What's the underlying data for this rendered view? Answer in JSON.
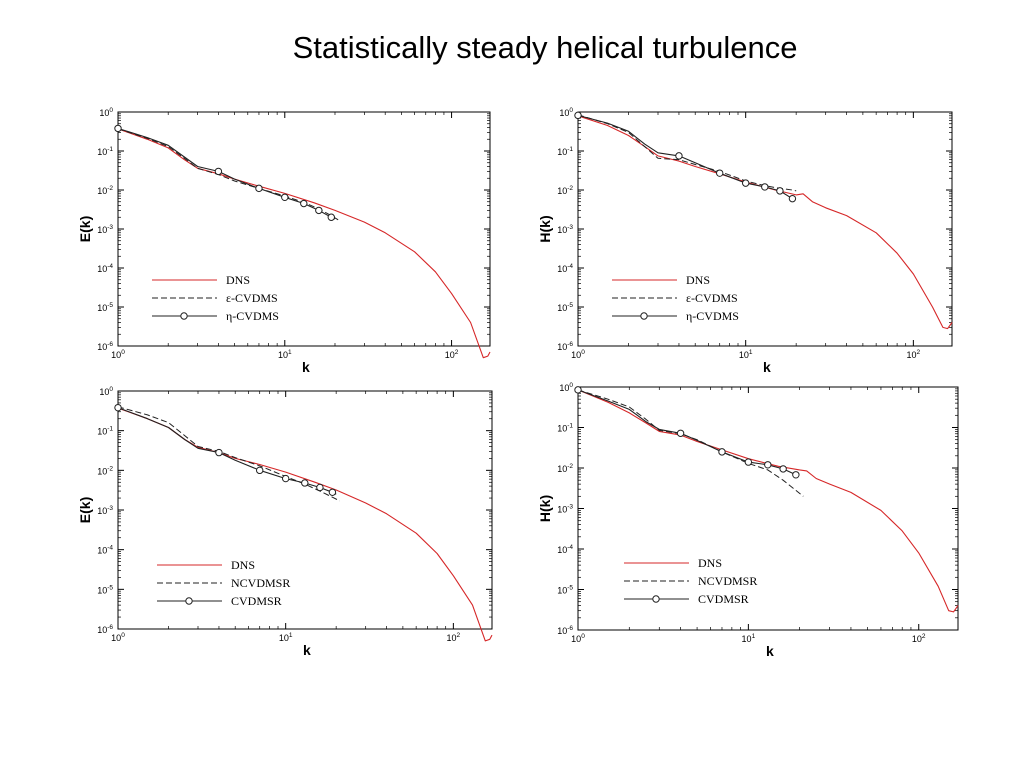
{
  "title": "Statistically steady helical turbulence",
  "colors": {
    "dns": "#d62728",
    "model": "#222222"
  },
  "chart_data": [
    {
      "type": "line",
      "xlabel": "k",
      "ylabel": "E(k)",
      "xscale": "log",
      "yscale": "log",
      "xlim": [
        1,
        170
      ],
      "ylim": [
        1e-06,
        1
      ],
      "xticks": [
        "10^0",
        "10^1",
        "10^2"
      ],
      "yticks": [
        "10^0",
        "10^-1",
        "10^-2",
        "10^-3",
        "10^-4",
        "10^-5",
        "10^-6"
      ],
      "legend_position": "bottom-left",
      "series": [
        {
          "name": "DNS",
          "color": "#d62728",
          "style": "solid",
          "marker": "none",
          "x": [
            1,
            1.5,
            2,
            2.5,
            3,
            4,
            5,
            7,
            10,
            15,
            20,
            30,
            40,
            60,
            80,
            100,
            130,
            155,
            165,
            170
          ],
          "y": [
            0.37,
            0.2,
            0.12,
            0.06,
            0.036,
            0.026,
            0.019,
            0.0125,
            0.0082,
            0.0047,
            0.003,
            0.0015,
            0.0008,
            0.00026,
            8e-05,
            2.2e-05,
            4e-06,
            5e-07,
            5.5e-07,
            7e-07
          ]
        },
        {
          "name": "ε-CVDMS",
          "color": "#222222",
          "style": "dashed",
          "marker": "none",
          "x": [
            1,
            1.5,
            2,
            2.5,
            3,
            4,
            5,
            7,
            10,
            13,
            16,
            19,
            21
          ],
          "y": [
            0.37,
            0.21,
            0.13,
            0.065,
            0.036,
            0.025,
            0.017,
            0.011,
            0.007,
            0.0048,
            0.0033,
            0.0022,
            0.0017
          ]
        },
        {
          "name": "η-CVDMS",
          "color": "#222222",
          "style": "solid",
          "marker": "circle",
          "x": [
            1,
            1.5,
            2,
            2.5,
            3,
            4,
            5,
            7,
            10,
            13,
            16,
            19,
            20
          ],
          "y": [
            0.38,
            0.22,
            0.14,
            0.07,
            0.04,
            0.03,
            0.019,
            0.011,
            0.0065,
            0.0045,
            0.003,
            0.002,
            0.0018
          ],
          "marker_x": [
            1,
            4,
            7,
            10,
            13,
            16,
            19
          ],
          "marker_y": [
            0.38,
            0.03,
            0.011,
            0.0065,
            0.0045,
            0.003,
            0.002
          ]
        }
      ]
    },
    {
      "type": "line",
      "xlabel": "k",
      "ylabel": "H(k)",
      "xscale": "log",
      "yscale": "log",
      "xlim": [
        1,
        170
      ],
      "ylim": [
        1e-06,
        1
      ],
      "xticks": [
        "10^0",
        "10^1",
        "10^2"
      ],
      "yticks": [
        "10^0",
        "10^-1",
        "10^-2",
        "10^-3",
        "10^-4",
        "10^-5",
        "10^-6"
      ],
      "legend_position": "bottom-left",
      "series": [
        {
          "name": "DNS",
          "color": "#d62728",
          "style": "solid",
          "marker": "none",
          "x": [
            1,
            1.5,
            2,
            2.5,
            3,
            4,
            5,
            7,
            10,
            15,
            20,
            22,
            25,
            30,
            40,
            60,
            80,
            100,
            130,
            150,
            160,
            170
          ],
          "y": [
            0.8,
            0.45,
            0.25,
            0.13,
            0.075,
            0.055,
            0.04,
            0.026,
            0.016,
            0.01,
            0.0075,
            0.008,
            0.005,
            0.0035,
            0.0022,
            0.0008,
            0.00024,
            7e-05,
            1e-05,
            3e-06,
            2.8e-06,
            4e-06
          ]
        },
        {
          "name": "ε-CVDMS",
          "color": "#222222",
          "style": "dashed",
          "marker": "none",
          "x": [
            1,
            1.5,
            2,
            2.5,
            3,
            4,
            5,
            7,
            10,
            13,
            16,
            19,
            20
          ],
          "y": [
            0.85,
            0.5,
            0.3,
            0.13,
            0.065,
            0.06,
            0.045,
            0.03,
            0.017,
            0.013,
            0.011,
            0.01,
            0.0095
          ]
        },
        {
          "name": "η-CVDMS",
          "color": "#222222",
          "style": "solid",
          "marker": "circle",
          "x": [
            1,
            1.5,
            2,
            2.5,
            3,
            4,
            5,
            7,
            10,
            13,
            16,
            19
          ],
          "y": [
            0.82,
            0.52,
            0.32,
            0.15,
            0.09,
            0.075,
            0.05,
            0.027,
            0.015,
            0.012,
            0.0095,
            0.006
          ],
          "marker_x": [
            1,
            4,
            7,
            10,
            13,
            16,
            19
          ],
          "marker_y": [
            0.82,
            0.075,
            0.027,
            0.015,
            0.012,
            0.0095,
            0.006
          ]
        }
      ]
    },
    {
      "type": "line",
      "xlabel": "k",
      "ylabel": "E(k)",
      "xscale": "log",
      "yscale": "log",
      "xlim": [
        1,
        170
      ],
      "ylim": [
        1e-06,
        1
      ],
      "xticks": [
        "10^0",
        "10^1",
        "10^2"
      ],
      "yticks": [
        "10^0",
        "10^-1",
        "10^-2",
        "10^-3",
        "10^-4",
        "10^-5",
        "10^-6"
      ],
      "legend_position": "bottom-left",
      "series": [
        {
          "name": "DNS",
          "color": "#d62728",
          "style": "solid",
          "marker": "none",
          "x": [
            1,
            1.5,
            2,
            2.5,
            3,
            4,
            5,
            7,
            10,
            15,
            20,
            30,
            40,
            60,
            80,
            100,
            130,
            155,
            165,
            170
          ],
          "y": [
            0.37,
            0.2,
            0.12,
            0.06,
            0.038,
            0.028,
            0.02,
            0.014,
            0.009,
            0.005,
            0.0032,
            0.0015,
            0.0008,
            0.00026,
            8e-05,
            2.2e-05,
            4e-06,
            5e-07,
            5.5e-07,
            7e-07
          ]
        },
        {
          "name": "NCVDMSR",
          "color": "#222222",
          "style": "dashed",
          "marker": "none",
          "x": [
            1,
            1.5,
            2,
            2.5,
            3,
            4,
            5,
            7,
            10,
            13,
            16,
            19,
            21
          ],
          "y": [
            0.4,
            0.25,
            0.16,
            0.075,
            0.04,
            0.03,
            0.021,
            0.013,
            0.007,
            0.0045,
            0.003,
            0.0021,
            0.0017
          ]
        },
        {
          "name": "CVDMSR",
          "color": "#222222",
          "style": "solid",
          "marker": "circle",
          "x": [
            1,
            1.5,
            2,
            2.5,
            3,
            4,
            5,
            7,
            10,
            13,
            16,
            19,
            20
          ],
          "y": [
            0.38,
            0.2,
            0.12,
            0.06,
            0.036,
            0.028,
            0.018,
            0.01,
            0.0062,
            0.0048,
            0.0037,
            0.0028,
            0.0025
          ],
          "marker_x": [
            1,
            4,
            7,
            10,
            13,
            16,
            19
          ],
          "marker_y": [
            0.38,
            0.028,
            0.01,
            0.0062,
            0.0048,
            0.0037,
            0.0028
          ]
        }
      ]
    },
    {
      "type": "line",
      "xlabel": "k",
      "ylabel": "H(k)",
      "xscale": "log",
      "yscale": "log",
      "xlim": [
        1,
        170
      ],
      "ylim": [
        1e-06,
        1
      ],
      "xticks": [
        "10^0",
        "10^1",
        "10^2"
      ],
      "yticks": [
        "10^0",
        "10^-1",
        "10^-2",
        "10^-3",
        "10^-4",
        "10^-5",
        "10^-6"
      ],
      "legend_position": "bottom-left",
      "series": [
        {
          "name": "DNS",
          "color": "#d62728",
          "style": "solid",
          "marker": "none",
          "x": [
            1,
            1.5,
            2,
            2.5,
            3,
            4,
            5,
            7,
            10,
            15,
            20,
            22,
            25,
            30,
            40,
            60,
            80,
            100,
            130,
            150,
            160,
            170
          ],
          "y": [
            0.85,
            0.42,
            0.23,
            0.13,
            0.08,
            0.065,
            0.045,
            0.028,
            0.017,
            0.011,
            0.009,
            0.0085,
            0.0055,
            0.004,
            0.0025,
            0.0009,
            0.00028,
            8e-05,
            1.2e-05,
            3e-06,
            2.8e-06,
            4e-06
          ]
        },
        {
          "name": "NCVDMSR",
          "color": "#222222",
          "style": "dashed",
          "marker": "none",
          "x": [
            1,
            1.5,
            2,
            2.5,
            3,
            4,
            5,
            7,
            10,
            13,
            16,
            19,
            21
          ],
          "y": [
            0.85,
            0.5,
            0.32,
            0.16,
            0.085,
            0.07,
            0.05,
            0.025,
            0.013,
            0.009,
            0.005,
            0.0028,
            0.002
          ]
        },
        {
          "name": "CVDMSR",
          "color": "#222222",
          "style": "solid",
          "marker": "circle",
          "x": [
            1,
            1.5,
            2,
            2.5,
            3,
            4,
            5,
            7,
            10,
            13,
            16,
            19
          ],
          "y": [
            0.85,
            0.45,
            0.28,
            0.14,
            0.09,
            0.072,
            0.048,
            0.025,
            0.014,
            0.012,
            0.0095,
            0.0068
          ],
          "marker_x": [
            1,
            4,
            7,
            10,
            13,
            16,
            19
          ],
          "marker_y": [
            0.85,
            0.072,
            0.025,
            0.014,
            0.012,
            0.0095,
            0.0068
          ]
        }
      ]
    }
  ]
}
